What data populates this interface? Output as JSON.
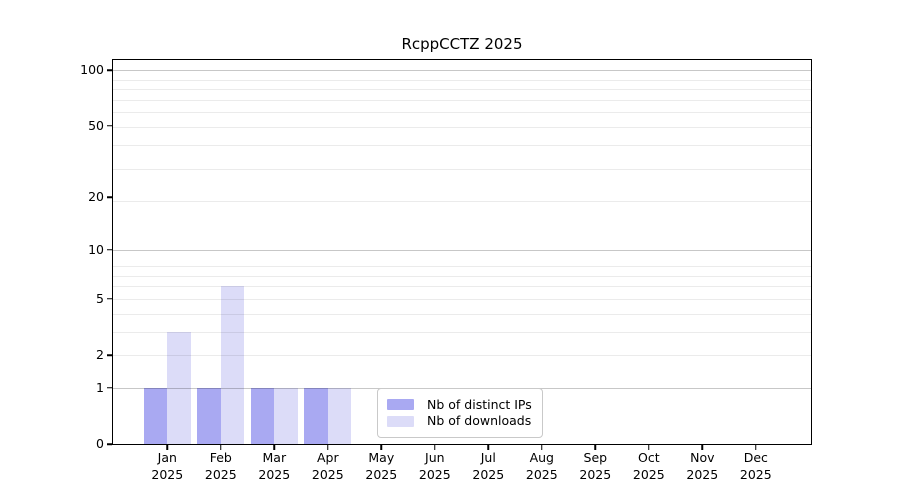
{
  "chart_data": {
    "type": "bar",
    "title": "RcppCCTZ 2025",
    "categories": [
      "Jan",
      "Feb",
      "Mar",
      "Apr",
      "May",
      "Jun",
      "Jul",
      "Aug",
      "Sep",
      "Oct",
      "Nov",
      "Dec"
    ],
    "category_year": "2025",
    "series": [
      {
        "name": "Nb of distinct IPs",
        "color": "#a9a9f2",
        "values": [
          1,
          1,
          1,
          1,
          0,
          0,
          0,
          0,
          0,
          0,
          0,
          0
        ]
      },
      {
        "name": "Nb of downloads",
        "color": "#dcdcf8",
        "values": [
          3,
          6,
          1,
          1,
          0,
          0,
          0,
          0,
          0,
          0,
          0,
          0
        ]
      }
    ],
    "yscale": "log1p",
    "ylim": [
      0,
      113
    ],
    "yticks": [
      0,
      1,
      2,
      5,
      10,
      20,
      50,
      100
    ],
    "ygrid_major": [
      1,
      10,
      100
    ],
    "ygrid_minor": [
      2,
      3,
      4,
      5,
      6,
      7,
      8,
      19,
      29,
      39,
      49,
      59,
      69,
      79,
      89
    ],
    "grid": "horizontal",
    "legend_position": "inside-bottom-center",
    "background_color": "#ffffff"
  }
}
